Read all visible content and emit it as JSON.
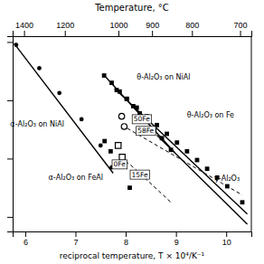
{
  "chart_data": {
    "type": "line",
    "title": "Temperature, °C",
    "x_label": "reciprocal temperature, T × 10⁴/K⁻¹",
    "xlim": [
      5.75,
      10.5
    ],
    "ylim": [
      -14.5,
      -7.8
    ],
    "xticks": [
      6,
      7,
      8,
      9,
      10
    ],
    "yticks": [
      -14,
      -12,
      -10,
      -8
    ],
    "x2lim": [
      5.75,
      10.5
    ],
    "x2ticks": [
      {
        "value": 5.97675,
        "label": "1400"
      },
      {
        "value": 6.78817,
        "label": "1200"
      },
      {
        "value": 7.85453,
        "label": "1000"
      },
      {
        "value": 8.52406,
        "label": "900"
      },
      {
        "value": 9.31836,
        "label": "800"
      },
      {
        "value": 10.27591,
        "label": "700"
      }
    ],
    "tick_labels": "x",
    "color": "#000000",
    "series": [
      {
        "type": "line",
        "line_style": "solid",
        "x": [
          5.78,
          7.75
        ],
        "values": [
          -8.05,
          -12.5
        ]
      },
      {
        "type": "scatter",
        "marker": "circle",
        "x": [
          5.82,
          6.28,
          6.68,
          7.12,
          7.5,
          7.72
        ],
        "values": [
          -8.1,
          -8.9,
          -9.75,
          -10.65,
          -11.55,
          -12.3
        ]
      },
      {
        "type": "line",
        "line_style": "solid",
        "x": [
          7.55,
          8.98
        ],
        "values": [
          -9.1,
          -11.8
        ]
      },
      {
        "type": "scatter",
        "marker": "square",
        "x": [
          7.57,
          7.72,
          7.88,
          8.02,
          8.15,
          8.28,
          8.42,
          8.57,
          8.72,
          8.9
        ],
        "values": [
          -9.15,
          -9.4,
          -9.7,
          -9.95,
          -10.2,
          -10.45,
          -10.7,
          -11.0,
          -11.3,
          -11.7
        ]
      },
      {
        "type": "line",
        "line_style": "solid",
        "x": [
          7.78,
          10.42
        ],
        "values": [
          -9.6,
          -13.9
        ]
      },
      {
        "type": "scatter",
        "marker": "square",
        "x": [
          7.82,
          8.02,
          8.22,
          8.42,
          8.62,
          8.82,
          9.02,
          9.22,
          9.42,
          9.62,
          9.82,
          10.02,
          10.32
        ],
        "values": [
          -9.65,
          -9.95,
          -10.25,
          -10.55,
          -10.85,
          -11.15,
          -11.45,
          -11.75,
          -12.05,
          -12.35,
          -12.65,
          -12.95,
          -13.5
        ]
      },
      {
        "type": "line",
        "line_style": "solid",
        "x": [
          8.62,
          10.42
        ],
        "values": [
          -11.2,
          -14.25
        ]
      },
      {
        "type": "scatter",
        "marker": "square",
        "x": [
          7.58,
          7.7,
          8.08
        ],
        "values": [
          -11.4,
          -11.75,
          -13.0
        ]
      },
      {
        "type": "line",
        "line_style": "dashed",
        "x": [
          7.92,
          8.42,
          8.92,
          9.42,
          9.92,
          10.32
        ],
        "values": [
          -10.85,
          -11.35,
          -11.85,
          -12.35,
          -12.85,
          -13.25
        ]
      },
      {
        "type": "line",
        "line_style": "dashed",
        "x": [
          7.9,
          8.15,
          8.4,
          8.65,
          8.9
        ],
        "values": [
          -11.95,
          -12.3,
          -12.7,
          -13.1,
          -13.5
        ]
      },
      {
        "type": "scatter",
        "marker": "open-circle",
        "x": [
          7.92,
          7.97
        ],
        "values": [
          -10.55,
          -10.9
        ]
      },
      {
        "type": "scatter",
        "marker": "open-square",
        "x": [
          7.85,
          7.93
        ],
        "values": [
          -11.55,
          -11.95
        ]
      }
    ],
    "annotations": [
      {
        "text": "50Fe",
        "x": 8.12,
        "y": -10.65
      },
      {
        "text": "58Fe",
        "x": 8.2,
        "y": -11.05
      },
      {
        "text": "0Fe",
        "x": 7.72,
        "y": -12.2
      },
      {
        "text": "15Fe",
        "x": 8.08,
        "y": -12.55
      },
      {
        "text": "α-Al₂O₃ on NiAl"
      },
      {
        "text": "α-Al₂O₃ on FeAl"
      },
      {
        "text": "θ-Al₂O₃ on NiAl"
      },
      {
        "text": "θ-Al₂O₃ on Fe"
      },
      {
        "text": "γ-Al₂O₃"
      }
    ]
  }
}
